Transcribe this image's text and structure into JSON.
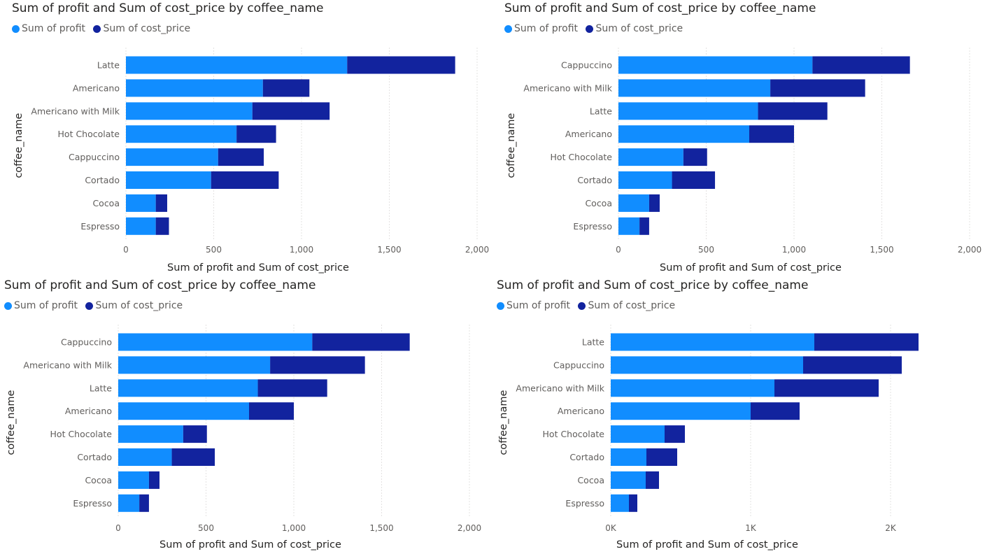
{
  "colors": {
    "profit": "#118DFF",
    "cost": "#12239E"
  },
  "chart_data": [
    {
      "type": "bar",
      "orientation": "horizontal",
      "stacked": true,
      "title": "Sum of profit and Sum of cost_price by coffee_name",
      "xlabel": "Sum of profit and Sum of cost_price",
      "ylabel": "coffee_name",
      "legend": [
        "Sum of profit",
        "Sum of cost_price"
      ],
      "legend_position": "top-left",
      "xlim": [
        0,
        2000
      ],
      "xticks": [
        0,
        500,
        1000,
        1500,
        2000
      ],
      "xtick_labels": [
        "0",
        "500",
        "1,000",
        "1,500",
        "2,000"
      ],
      "grid": true,
      "categories": [
        "Latte",
        "Americano",
        "Americano with Milk",
        "Hot Chocolate",
        "Cappuccino",
        "Cortado",
        "Cocoa",
        "Espresso"
      ],
      "series": [
        {
          "name": "Sum of profit",
          "values": [
            1260,
            780,
            720,
            630,
            525,
            485,
            170,
            170
          ]
        },
        {
          "name": "Sum of cost_price",
          "values": [
            615,
            265,
            440,
            225,
            260,
            385,
            65,
            75
          ]
        }
      ]
    },
    {
      "type": "bar",
      "orientation": "horizontal",
      "stacked": true,
      "title": "Sum of profit and Sum of cost_price by coffee_name",
      "xlabel": "Sum of profit and Sum of cost_price",
      "ylabel": "coffee_name",
      "legend": [
        "Sum of profit",
        "Sum of cost_price"
      ],
      "legend_position": "top-left",
      "xlim": [
        0,
        2000
      ],
      "xticks": [
        0,
        500,
        1000,
        1500,
        2000
      ],
      "xtick_labels": [
        "0",
        "500",
        "1,000",
        "1,500",
        "2,000"
      ],
      "grid": true,
      "categories": [
        "Cappuccino",
        "Americano with Milk",
        "Latte",
        "Americano",
        "Hot Chocolate",
        "Cortado",
        "Cocoa",
        "Espresso"
      ],
      "series": [
        {
          "name": "Sum of profit",
          "values": [
            1105,
            865,
            795,
            745,
            370,
            305,
            175,
            120
          ]
        },
        {
          "name": "Sum of cost_price",
          "values": [
            555,
            540,
            395,
            255,
            135,
            245,
            60,
            55
          ]
        }
      ]
    },
    {
      "type": "bar",
      "orientation": "horizontal",
      "stacked": true,
      "title": "Sum of profit and Sum of cost_price by coffee_name",
      "xlabel": "Sum of profit and Sum of cost_price",
      "ylabel": "coffee_name",
      "legend": [
        "Sum of profit",
        "Sum of cost_price"
      ],
      "legend_position": "top-left",
      "xlim": [
        0,
        2000
      ],
      "xticks": [
        0,
        500,
        1000,
        1500,
        2000
      ],
      "xtick_labels": [
        "0",
        "500",
        "1,000",
        "1,500",
        "2,000"
      ],
      "grid": true,
      "categories": [
        "Cappuccino",
        "Americano with Milk",
        "Latte",
        "Americano",
        "Hot Chocolate",
        "Cortado",
        "Cocoa",
        "Espresso"
      ],
      "series": [
        {
          "name": "Sum of profit",
          "values": [
            1105,
            865,
            795,
            745,
            370,
            305,
            175,
            120
          ]
        },
        {
          "name": "Sum of cost_price",
          "values": [
            555,
            540,
            395,
            255,
            135,
            245,
            60,
            55
          ]
        }
      ]
    },
    {
      "type": "bar",
      "orientation": "horizontal",
      "stacked": true,
      "title": "Sum of profit and Sum of cost_price by coffee_name",
      "xlabel": "Sum of profit and Sum of cost_price",
      "ylabel": "coffee_name",
      "legend": [
        "Sum of profit",
        "Sum of cost_price"
      ],
      "legend_position": "top-left",
      "xlim": [
        0,
        2000
      ],
      "xticks": [
        0,
        1000,
        2000
      ],
      "xtick_labels": [
        "0K",
        "1K",
        "2K"
      ],
      "grid": true,
      "categories": [
        "Latte",
        "Cappuccino",
        "Americano with Milk",
        "Americano",
        "Hot Chocolate",
        "Cortado",
        "Cocoa",
        "Espresso"
      ],
      "series": [
        {
          "name": "Sum of profit",
          "values": [
            1455,
            1375,
            1170,
            1000,
            385,
            255,
            250,
            130
          ]
        },
        {
          "name": "Sum of cost_price",
          "values": [
            745,
            705,
            745,
            350,
            145,
            220,
            95,
            60
          ]
        }
      ]
    }
  ]
}
